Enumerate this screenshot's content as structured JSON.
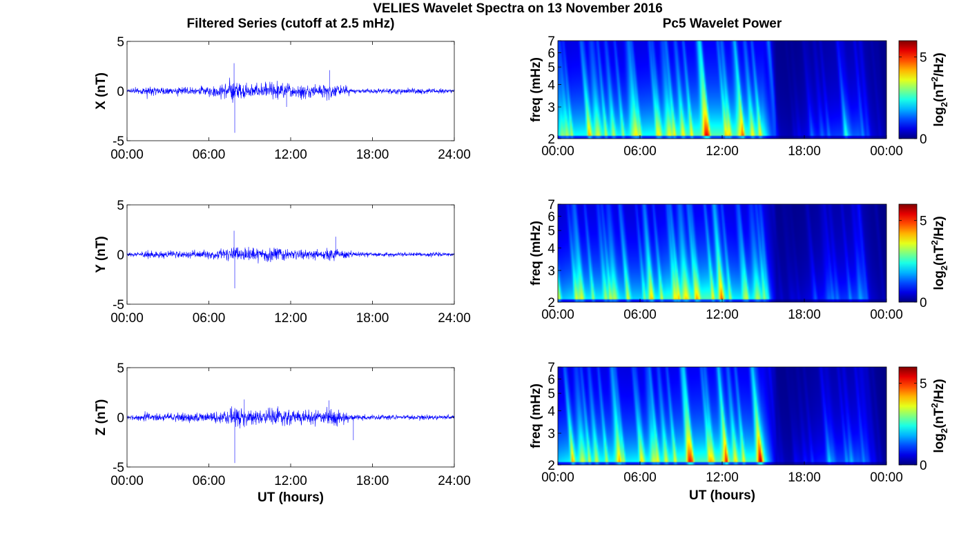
{
  "figure": {
    "title": "VELIES Wavelet Spectra on 13 November 2016",
    "left_column_title": "Filtered Series (cutoff at 2.5 mHz)",
    "right_column_title": "Pc5 Wavelet Power"
  },
  "colors": {
    "trace": "#0000ff",
    "axes": "#000000",
    "colormap": "jet",
    "spectrogram_background": "#00008f"
  },
  "chart_data": [
    {
      "type": "line",
      "name": "x-series",
      "ylabel": "X (nT)",
      "xlabel": "",
      "ylim": [
        -5,
        5
      ],
      "yticks": [
        5,
        0,
        -5
      ],
      "xlim": [
        0,
        24
      ],
      "xticks": [
        "00:00",
        "06:00",
        "12:00",
        "18:00",
        "24:00"
      ],
      "x": [
        0,
        1,
        1.5,
        2,
        3,
        4,
        5,
        6,
        7,
        7.5,
        7.8,
        8,
        8.5,
        9,
        9.5,
        10,
        10.5,
        11,
        11.5,
        12,
        12.5,
        13,
        13.5,
        14,
        14.5,
        15,
        15.5,
        16,
        16.5,
        17,
        18,
        19,
        20,
        21,
        22,
        23,
        24
      ],
      "amplitude": [
        0.3,
        0.4,
        0.7,
        0.5,
        0.5,
        0.5,
        0.5,
        0.6,
        0.9,
        1.3,
        1.6,
        1.5,
        1.0,
        0.9,
        0.9,
        0.8,
        1.0,
        1.1,
        1.0,
        0.9,
        0.9,
        0.8,
        0.7,
        0.8,
        0.9,
        1.0,
        0.8,
        0.6,
        0.4,
        0.3,
        0.3,
        0.3,
        0.35,
        0.35,
        0.3,
        0.3,
        0.25
      ],
      "spikes": [
        {
          "x": 7.9,
          "y": -4.2
        },
        {
          "x": 7.85,
          "y": 2.8
        },
        {
          "x": 14.85,
          "y": 2.1
        },
        {
          "x": 11.7,
          "y": -1.6
        }
      ]
    },
    {
      "type": "line",
      "name": "y-series",
      "ylabel": "Y (nT)",
      "xlabel": "",
      "ylim": [
        -5,
        5
      ],
      "yticks": [
        5,
        0,
        -5
      ],
      "xlim": [
        0,
        24
      ],
      "xticks": [
        "00:00",
        "06:00",
        "12:00",
        "18:00",
        "24:00"
      ],
      "x": [
        0,
        1,
        1.5,
        2,
        3,
        4,
        5,
        6,
        7,
        7.5,
        7.8,
        8,
        8.5,
        9,
        9.5,
        10,
        10.5,
        11,
        11.5,
        12,
        12.5,
        13,
        13.5,
        14,
        14.5,
        15,
        15.5,
        16,
        16.5,
        17,
        18,
        19,
        20,
        21,
        22,
        23,
        24
      ],
      "amplitude": [
        0.25,
        0.3,
        0.6,
        0.4,
        0.4,
        0.4,
        0.45,
        0.5,
        0.8,
        1.1,
        1.2,
        1.0,
        0.9,
        0.8,
        0.8,
        0.8,
        1.0,
        1.0,
        0.8,
        0.6,
        0.5,
        0.5,
        0.5,
        0.55,
        0.6,
        0.7,
        0.55,
        0.45,
        0.35,
        0.3,
        0.25,
        0.25,
        0.25,
        0.25,
        0.25,
        0.25,
        0.2
      ],
      "spikes": [
        {
          "x": 7.9,
          "y": -3.4
        },
        {
          "x": 7.85,
          "y": 2.4
        },
        {
          "x": 15.3,
          "y": 1.8
        }
      ]
    },
    {
      "type": "line",
      "name": "z-series",
      "ylabel": "Z (nT)",
      "xlabel": "UT (hours)",
      "ylim": [
        -5,
        5
      ],
      "yticks": [
        5,
        0,
        -5
      ],
      "xlim": [
        0,
        24
      ],
      "xticks": [
        "00:00",
        "06:00",
        "12:00",
        "18:00",
        "24:00"
      ],
      "x": [
        0,
        1,
        1.5,
        2,
        3,
        4,
        5,
        6,
        7,
        7.5,
        7.8,
        8,
        8.5,
        9,
        9.5,
        10,
        10.5,
        11,
        11.5,
        12,
        12.5,
        13,
        13.5,
        14,
        14.5,
        15,
        15.5,
        16,
        16.5,
        17,
        18,
        19,
        20,
        21,
        22,
        23,
        24
      ],
      "amplitude": [
        0.3,
        0.4,
        0.7,
        0.5,
        0.5,
        0.5,
        0.55,
        0.6,
        0.9,
        1.1,
        1.2,
        1.3,
        1.0,
        0.9,
        0.9,
        0.8,
        1.0,
        1.1,
        1.0,
        0.9,
        0.9,
        0.8,
        0.8,
        0.9,
        1.0,
        1.1,
        0.9,
        0.7,
        0.5,
        0.35,
        0.3,
        0.3,
        0.3,
        0.3,
        0.3,
        0.3,
        0.25
      ],
      "spikes": [
        {
          "x": 7.9,
          "y": -4.6
        },
        {
          "x": 16.6,
          "y": -2.3
        },
        {
          "x": 14.8,
          "y": 1.7
        },
        {
          "x": 8.6,
          "y": 1.8
        }
      ]
    },
    {
      "type": "heatmap",
      "name": "x-spectrogram",
      "ylabel": "freq (mHz)",
      "xlabel": "",
      "yscale": "log",
      "ylim": [
        2,
        7
      ],
      "yticks": [
        2,
        3,
        4,
        5,
        6,
        7
      ],
      "xlim": [
        0,
        24
      ],
      "xticks": [
        "00:00",
        "06:00",
        "12:00",
        "18:00",
        "00:00"
      ],
      "colorbar": {
        "label_base": "log",
        "label_sub": "2",
        "label_mid": "(nT",
        "label_sup": "2",
        "label_end": "/Hz)",
        "ticks": [
          0,
          5
        ],
        "range": [
          0,
          6
        ]
      },
      "x_hours": [
        0,
        1,
        2,
        3,
        4,
        5,
        6,
        7,
        8,
        9,
        10,
        11,
        12,
        13,
        14,
        15,
        16,
        17,
        18,
        19,
        20,
        21,
        22,
        23,
        24
      ],
      "power_envelope": [
        4.2,
        4.8,
        5.0,
        5.0,
        4.8,
        4.6,
        4.8,
        5.0,
        5.2,
        5.5,
        5.6,
        5.8,
        5.8,
        5.6,
        5.4,
        5.6,
        0.8,
        0.6,
        1.2,
        1.8,
        2.2,
        2.4,
        2.8,
        1.2,
        0.3
      ]
    },
    {
      "type": "heatmap",
      "name": "y-spectrogram",
      "ylabel": "freq (mHz)",
      "xlabel": "",
      "yscale": "log",
      "ylim": [
        2,
        7
      ],
      "yticks": [
        2,
        3,
        4,
        5,
        6,
        7
      ],
      "xlim": [
        0,
        24
      ],
      "xticks": [
        "00:00",
        "06:00",
        "12:00",
        "18:00",
        "00:00"
      ],
      "colorbar": {
        "label_base": "log",
        "label_sub": "2",
        "label_mid": "(nT",
        "label_sup": "2",
        "label_end": "/Hz)",
        "ticks": [
          0,
          5
        ],
        "range": [
          0,
          6
        ]
      },
      "x_hours": [
        0,
        1,
        2,
        3,
        4,
        5,
        6,
        7,
        8,
        9,
        10,
        11,
        12,
        13,
        14,
        15,
        16,
        17,
        18,
        19,
        20,
        21,
        22,
        23,
        24
      ],
      "power_envelope": [
        3.8,
        4.4,
        4.6,
        4.6,
        4.8,
        4.2,
        4.2,
        4.6,
        5.4,
        5.8,
        5.4,
        5.8,
        5.0,
        4.6,
        4.6,
        4.8,
        0.8,
        0.6,
        1.0,
        1.6,
        2.0,
        2.2,
        2.6,
        1.0,
        0.3
      ]
    },
    {
      "type": "heatmap",
      "name": "z-spectrogram",
      "ylabel": "freq (mHz)",
      "xlabel": "UT (hours)",
      "yscale": "log",
      "ylim": [
        2,
        7
      ],
      "yticks": [
        2,
        3,
        4,
        5,
        6,
        7
      ],
      "xlim": [
        0,
        24
      ],
      "xticks": [
        "00:00",
        "06:00",
        "12:00",
        "18:00",
        "00:00"
      ],
      "colorbar": {
        "label_base": "log",
        "label_sub": "2",
        "label_mid": "(nT",
        "label_sup": "2",
        "label_end": "/Hz)",
        "ticks": [
          0,
          5
        ],
        "range": [
          0,
          6
        ]
      },
      "x_hours": [
        0,
        1,
        2,
        3,
        4,
        5,
        6,
        7,
        8,
        9,
        10,
        11,
        12,
        13,
        14,
        15,
        16,
        17,
        18,
        19,
        20,
        21,
        22,
        23,
        24
      ],
      "power_envelope": [
        4.2,
        4.8,
        5.0,
        5.0,
        4.8,
        4.6,
        4.8,
        5.0,
        5.2,
        5.5,
        5.6,
        5.8,
        5.8,
        5.6,
        5.4,
        5.6,
        0.8,
        0.6,
        1.2,
        1.8,
        2.2,
        2.4,
        2.8,
        1.2,
        0.3
      ]
    }
  ]
}
